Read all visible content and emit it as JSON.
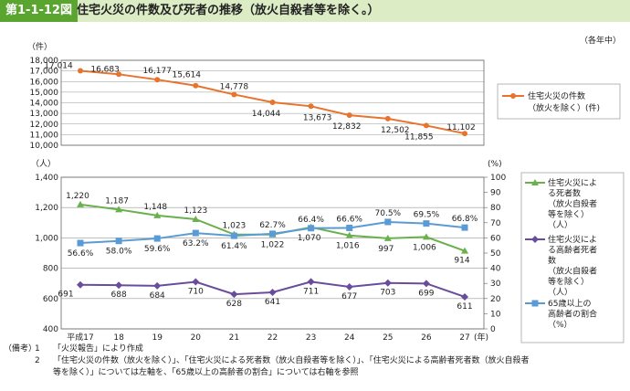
{
  "header": {
    "badge": "第1-1-12図",
    "title": "住宅火災の件数及び死者の推移（放火自殺者等を除く。）"
  },
  "unit_note": "（各年中）",
  "chart_data": [
    {
      "type": "line",
      "ylabel": "（件）",
      "ylim": [
        10000,
        18000
      ],
      "yticks": [
        "18,000",
        "17,000",
        "16,000",
        "15,000",
        "14,000",
        "13,000",
        "12,000",
        "11,000",
        "10,000"
      ],
      "categories": [
        "平成17",
        "18",
        "19",
        "20",
        "21",
        "22",
        "23",
        "24",
        "25",
        "26",
        "27"
      ],
      "series": [
        {
          "name": "住宅火災の件数（放火を除く）(件)",
          "color": "#e8732c",
          "values": [
            17014,
            16683,
            16177,
            15614,
            14778,
            14044,
            13673,
            12832,
            12502,
            11855,
            11102
          ],
          "labels": [
            "17,014",
            "16,683",
            "16,177",
            "15,614",
            "14,778",
            "14,044",
            "13,673",
            "12,832",
            "12,502",
            "11,855",
            "11,102"
          ]
        }
      ],
      "legend": {
        "line1": "住宅火災の件数",
        "line2": "（放火を除く）(件)"
      }
    },
    {
      "type": "line",
      "ylabel_left": "（人）",
      "ylabel_right": "(%)",
      "ylim_left": [
        400,
        1400
      ],
      "ylim_right": [
        0,
        100
      ],
      "yticks_left": [
        "1,400",
        "1,200",
        "1,000",
        "800",
        "600",
        "400"
      ],
      "yticks_right": [
        "100",
        "90",
        "80",
        "70",
        "60",
        "50",
        "40",
        "30",
        "20",
        "10",
        "0"
      ],
      "categories": [
        "平成17",
        "18",
        "19",
        "20",
        "21",
        "22",
        "23",
        "24",
        "25",
        "26",
        "27"
      ],
      "xunit": "(年)",
      "series": [
        {
          "name": "住宅火災による死者数（放火自殺者等を除く）（人）",
          "color": "#6ab04c",
          "marker": "triangle",
          "axis": "left",
          "values": [
            1220,
            1187,
            1148,
            1123,
            1023,
            1022,
            1070,
            1016,
            997,
            1006,
            914
          ],
          "labels": [
            "1,220",
            "1,187",
            "1,148",
            "1,123",
            "1,023",
            "1,022",
            "1,070",
            "1,016",
            "997",
            "1,006",
            "914"
          ]
        },
        {
          "name": "住宅火災による高齢者死者数（放火自殺者等を除く）（人）",
          "color": "#6a4c9c",
          "marker": "diamond",
          "axis": "left",
          "values": [
            691,
            688,
            684,
            710,
            628,
            641,
            711,
            677,
            703,
            699,
            611
          ],
          "labels": [
            "691",
            "688",
            "684",
            "710",
            "628",
            "641",
            "711",
            "677",
            "703",
            "699",
            "611"
          ]
        },
        {
          "name": "65歳以上の高齢者の割合（%）",
          "color": "#5b9bd5",
          "marker": "square",
          "axis": "right",
          "values": [
            56.6,
            58.0,
            59.6,
            63.2,
            61.4,
            62.7,
            66.4,
            66.6,
            70.5,
            69.5,
            66.8
          ],
          "labels": [
            "56.6%",
            "58.0%",
            "59.6%",
            "63.2%",
            "61.4%",
            "62.7%",
            "66.4%",
            "66.6%",
            "70.5%",
            "69.5%",
            "66.8%"
          ]
        }
      ],
      "legend": [
        [
          "住宅火災によ",
          "る死者数",
          "（放火自殺者",
          "等を除く）",
          "（人）"
        ],
        [
          "住宅火災によ",
          "る高齢者死者",
          "数",
          "（放火自殺者",
          "等を除く）",
          "（人）"
        ],
        [
          "65歳以上の",
          "高齢者の割合",
          "（%）"
        ]
      ]
    }
  ],
  "notes": {
    "label": "（備考）",
    "items": [
      {
        "num": "1",
        "text": "「火災報告」により作成"
      },
      {
        "num": "2",
        "text": "「住宅火災の件数（放火を除く）」、「住宅火災による死者数（放火自殺者等を除く）」、「住宅火災による高齢者死者数（放火自殺者"
      },
      {
        "num": "",
        "text": "等を除く）」については左軸を、「65歳以上の高齢者の割合」については右軸を参照"
      }
    ]
  }
}
